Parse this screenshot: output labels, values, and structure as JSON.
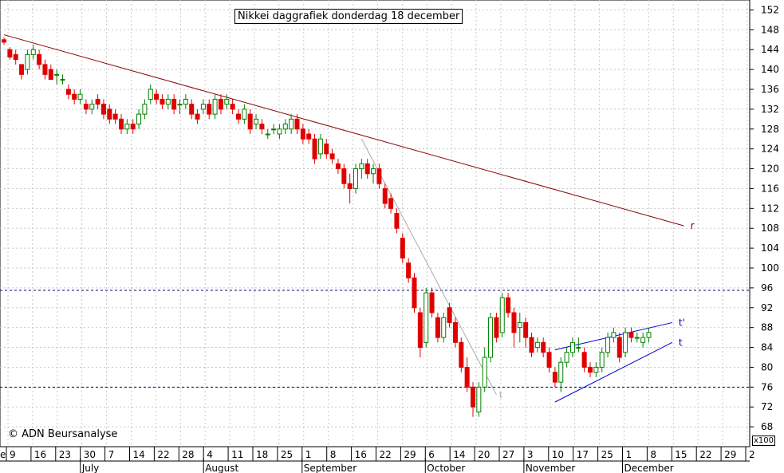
{
  "chart_data": {
    "type": "candlestick",
    "title": "Nikkei daggrafiek donderdag 18 december",
    "credit": "© ADN Beursanalyse",
    "unit_label": "x100",
    "ylim": [
      64,
      154
    ],
    "y_ticks": [
      68,
      72,
      76,
      80,
      84,
      88,
      92,
      96,
      100,
      104,
      108,
      112,
      116,
      120,
      124,
      128,
      132,
      136,
      140,
      144,
      148,
      152
    ],
    "y_tick_labels": [
      "68",
      "72",
      "76",
      "80",
      "84",
      "88",
      "92",
      "96",
      "100",
      "104",
      "108",
      "112",
      "116",
      "120",
      "124",
      "128",
      "132",
      "136",
      "140",
      "144",
      "148",
      "152"
    ],
    "x_day_labels": [
      "9",
      "16",
      "23",
      "30",
      "7",
      "14",
      "22",
      "28",
      "4",
      "11",
      "18",
      "25",
      "1",
      "8",
      "16",
      "22",
      "29",
      "6",
      "14",
      "20",
      "27",
      "3",
      "10",
      "17",
      "25",
      "1",
      "8",
      "15",
      "22",
      "29",
      "2"
    ],
    "x_month_labels": [
      "July",
      "August",
      "September",
      "October",
      "November",
      "December"
    ],
    "x_edge_label": "e",
    "up_color": "#008000",
    "down_color": "#e00000",
    "candles": [
      [
        146,
        146.5,
        145,
        145.5
      ],
      [
        144,
        144.5,
        142,
        142.5
      ],
      [
        143,
        144,
        141,
        142
      ],
      [
        141,
        141,
        138,
        139
      ],
      [
        140,
        144,
        139,
        143
      ],
      [
        143,
        145,
        142,
        144
      ],
      [
        143,
        144,
        140,
        141
      ],
      [
        141,
        142,
        138,
        139
      ],
      [
        140,
        141,
        138,
        138
      ],
      [
        139,
        140,
        137,
        139
      ],
      [
        138,
        139,
        137,
        138
      ],
      [
        136,
        137,
        134,
        135
      ],
      [
        135,
        136,
        133,
        134
      ],
      [
        134,
        136,
        133,
        135
      ],
      [
        133,
        134,
        131,
        132
      ],
      [
        132,
        134,
        131,
        133
      ],
      [
        134,
        135,
        132,
        133
      ],
      [
        133,
        134,
        130,
        131
      ],
      [
        132,
        133,
        129,
        130
      ],
      [
        131,
        132,
        129,
        130
      ],
      [
        130,
        131,
        127,
        128
      ],
      [
        128,
        130,
        127,
        129
      ],
      [
        129,
        130,
        127,
        128
      ],
      [
        129,
        132,
        128,
        131
      ],
      [
        131,
        134,
        130,
        133
      ],
      [
        134,
        137,
        133,
        136
      ],
      [
        135,
        136,
        133,
        134
      ],
      [
        134,
        135,
        132,
        133
      ],
      [
        133,
        135,
        132,
        134
      ],
      [
        134,
        135,
        131,
        132
      ],
      [
        133,
        134,
        131,
        133
      ],
      [
        133,
        135,
        132,
        134
      ],
      [
        133,
        134,
        130,
        131
      ],
      [
        131,
        132,
        129,
        130
      ],
      [
        132,
        134,
        131,
        133
      ],
      [
        133,
        134,
        130,
        131
      ],
      [
        131,
        135,
        130,
        134
      ],
      [
        134,
        135,
        131,
        132
      ],
      [
        133,
        135,
        132,
        134
      ],
      [
        133,
        134,
        131,
        132
      ],
      [
        131,
        132,
        129,
        130
      ],
      [
        130,
        133,
        129,
        132
      ],
      [
        131,
        132,
        127,
        128
      ],
      [
        129,
        131,
        128,
        130
      ],
      [
        129,
        130,
        127,
        128
      ],
      [
        127,
        128,
        126,
        127
      ],
      [
        128,
        129,
        127,
        128
      ],
      [
        127,
        129,
        126,
        128
      ],
      [
        128,
        130,
        127,
        129
      ],
      [
        128,
        131,
        127,
        130
      ],
      [
        130,
        131,
        127,
        128
      ],
      [
        128,
        129,
        125,
        126
      ],
      [
        127,
        128,
        125,
        126
      ],
      [
        126,
        127,
        121,
        122
      ],
      [
        123,
        127,
        122,
        126
      ],
      [
        125,
        126,
        122,
        123
      ],
      [
        123,
        124,
        121,
        122
      ],
      [
        121,
        122,
        119,
        120
      ],
      [
        120,
        121,
        116,
        117
      ],
      [
        117,
        119,
        113,
        116
      ],
      [
        116,
        121,
        115,
        120
      ],
      [
        120,
        122,
        118,
        121
      ],
      [
        121,
        122,
        118,
        119
      ],
      [
        119,
        121,
        117,
        120
      ],
      [
        120,
        121,
        116,
        117
      ],
      [
        116,
        117,
        112,
        113
      ],
      [
        114,
        115,
        111,
        112
      ],
      [
        111,
        112,
        107,
        108
      ],
      [
        106,
        107,
        101,
        102
      ],
      [
        101,
        102,
        97,
        98
      ],
      [
        98,
        99,
        91,
        92
      ],
      [
        91,
        92,
        82,
        84
      ],
      [
        85,
        96,
        84,
        95
      ],
      [
        95,
        96,
        90,
        91
      ],
      [
        90,
        91,
        85,
        86
      ],
      [
        86,
        91,
        85,
        90
      ],
      [
        92,
        93,
        88,
        89
      ],
      [
        89,
        90,
        84,
        85
      ],
      [
        85,
        86,
        79,
        80
      ],
      [
        80,
        82,
        75,
        76
      ],
      [
        76,
        77,
        70,
        72
      ],
      [
        71,
        77,
        70,
        76
      ],
      [
        76,
        84,
        75,
        82
      ],
      [
        82,
        91,
        81,
        90
      ],
      [
        90,
        91,
        85,
        86
      ],
      [
        87,
        95,
        86,
        94
      ],
      [
        94,
        95,
        90,
        91
      ],
      [
        91,
        92,
        84,
        87
      ],
      [
        88,
        91,
        85,
        89
      ],
      [
        89,
        90,
        84,
        86
      ],
      [
        86,
        87,
        82,
        83
      ],
      [
        84,
        86,
        83,
        85
      ],
      [
        85,
        86,
        82,
        83
      ],
      [
        83,
        84,
        79,
        80
      ],
      [
        79,
        80,
        76,
        77
      ],
      [
        77,
        82,
        75,
        81
      ],
      [
        81,
        84,
        80,
        83
      ],
      [
        83,
        86,
        82,
        85
      ],
      [
        84,
        86,
        83,
        84
      ],
      [
        83,
        84,
        79,
        80
      ],
      [
        80,
        81,
        78,
        79
      ],
      [
        79,
        81,
        78,
        80
      ],
      [
        80,
        84,
        79,
        83
      ],
      [
        83,
        87,
        82,
        86
      ],
      [
        86,
        88,
        85,
        87
      ],
      [
        86,
        87,
        81,
        82
      ],
      [
        83,
        88,
        82,
        87
      ],
      [
        87,
        88,
        85,
        86
      ],
      [
        86,
        87,
        85,
        86
      ],
      [
        85,
        87,
        84,
        86
      ],
      [
        86,
        88,
        85,
        87
      ]
    ],
    "trendlines": [
      {
        "label": "r",
        "color": "#8b0000",
        "points": [
          [
            0,
            147
          ],
          [
            116,
            108.5
          ]
        ]
      },
      {
        "label": "",
        "color": "#aaaaaa",
        "points": [
          [
            61,
            126
          ],
          [
            84,
            74.5
          ]
        ]
      },
      {
        "label": "t",
        "color": "#aaaaaa",
        "points": [
          [
            85,
            74.5
          ],
          [
            85,
            74.5
          ]
        ]
      },
      {
        "label": "t'",
        "color": "#0000cc",
        "points": [
          [
            94,
            83.5
          ],
          [
            114,
            89
          ]
        ]
      },
      {
        "label": "t",
        "color": "#0000cc",
        "points": [
          [
            94,
            73
          ],
          [
            114,
            85
          ]
        ]
      }
    ],
    "horizontal_lines": [
      {
        "value": 95.5,
        "color": "#000080"
      },
      {
        "value": 76,
        "color": "#000080"
      }
    ]
  }
}
